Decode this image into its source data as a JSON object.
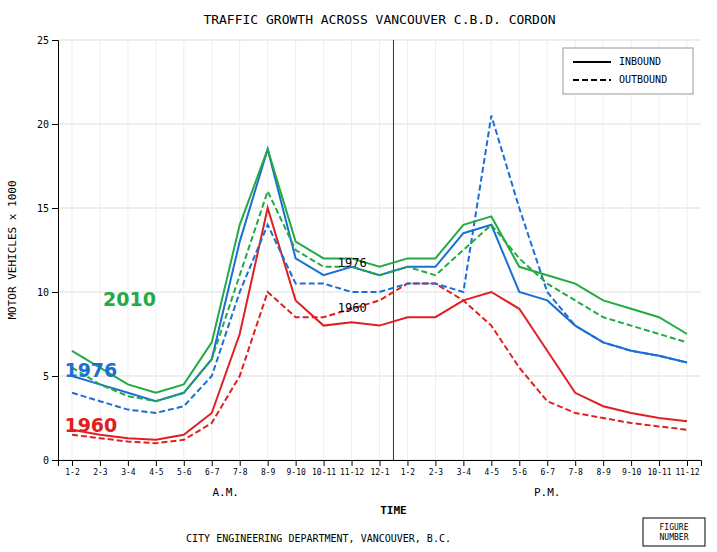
{
  "chart_data": {
    "type": "line",
    "title": "TRAFFIC GROWTH ACROSS VANCOUVER C.B.D. CORDON",
    "subtitle": "CITY ENGINEERING DEPARTMENT, VANCOUVER, B.C.",
    "x_label": "TIME",
    "y_label": "MOTOR VEHICLES x 1000",
    "period_labels": [
      "A.M.",
      "P.M."
    ],
    "figure_label": "FIGURE\nNUMBER",
    "categories": [
      "1-2",
      "2-3",
      "3-4",
      "4-5",
      "5-6",
      "6-7",
      "7-8",
      "8-9",
      "9-10",
      "10-11",
      "11-12",
      "12-1",
      "1-2",
      "2-3",
      "3-4",
      "4-5",
      "5-6",
      "6-7",
      "7-8",
      "8-9",
      "9-10",
      "10-11",
      "11-12"
    ],
    "ylim": [
      0,
      25
    ],
    "yticks": [
      0,
      5,
      10,
      15,
      20,
      25
    ],
    "grid": true,
    "legend": "upper right",
    "legend_entries": [
      {
        "label": "INBOUND",
        "line_style": "solid"
      },
      {
        "label": "OUTBOUND",
        "line_style": "dashed"
      }
    ],
    "annotations": [
      {
        "text": "1976"
      },
      {
        "text": "1960"
      },
      {
        "text": "1960",
        "color": "#e02020"
      },
      {
        "text": "1976",
        "color": "#1a6fd4"
      },
      {
        "text": "2010",
        "color": "#22aa44"
      }
    ],
    "series": [
      {
        "color": "#e02020",
        "line_style": "solid",
        "values": [
          1.8,
          1.5,
          1.3,
          1.2,
          1.5,
          2.8,
          7.5,
          15.0,
          9.5,
          8.0,
          8.2,
          8.0,
          8.5,
          8.5,
          9.5,
          10.0,
          9.0,
          6.5,
          4.0,
          3.2,
          2.8,
          2.5,
          2.3
        ]
      },
      {
        "color": "#e02020",
        "line_style": "dashed",
        "values": [
          1.5,
          1.3,
          1.1,
          1.0,
          1.2,
          2.2,
          5.0,
          10.0,
          8.5,
          8.5,
          9.0,
          9.5,
          10.5,
          10.5,
          9.5,
          8.0,
          5.5,
          3.5,
          2.8,
          2.5,
          2.2,
          2.0,
          1.8
        ]
      },
      {
        "color": "#1a6fd4",
        "line_style": "solid",
        "values": [
          5.0,
          4.5,
          4.0,
          3.5,
          4.0,
          6.0,
          13.0,
          18.5,
          12.0,
          11.0,
          11.5,
          11.0,
          11.5,
          11.5,
          13.5,
          14.0,
          10.0,
          9.5,
          8.0,
          7.0,
          6.5,
          6.2,
          5.8
        ]
      },
      {
        "color": "#1a6fd4",
        "line_style": "dashed",
        "values": [
          4.0,
          3.5,
          3.0,
          2.8,
          3.2,
          5.0,
          10.0,
          14.0,
          10.5,
          10.5,
          10.0,
          10.0,
          10.5,
          10.5,
          10.0,
          20.5,
          15.0,
          10.0,
          8.0,
          7.0,
          6.5,
          6.2,
          5.8
        ]
      },
      {
        "color": "#22aa44",
        "line_style": "solid",
        "values": [
          6.5,
          5.5,
          4.5,
          4.0,
          4.5,
          7.0,
          14.0,
          18.5,
          13.0,
          12.0,
          12.0,
          11.5,
          12.0,
          12.0,
          14.0,
          14.5,
          11.5,
          11.0,
          10.5,
          9.5,
          9.0,
          8.5,
          7.5
        ]
      },
      {
        "color": "#22aa44",
        "line_style": "dashed",
        "values": [
          5.5,
          4.5,
          3.8,
          3.5,
          4.0,
          6.0,
          11.0,
          16.0,
          12.5,
          11.5,
          11.5,
          11.0,
          11.5,
          11.0,
          12.5,
          14.0,
          12.0,
          10.5,
          9.5,
          8.5,
          8.0,
          7.5,
          7.0
        ]
      }
    ]
  }
}
